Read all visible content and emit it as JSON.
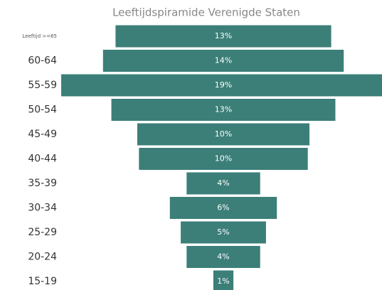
{
  "chart_data": {
    "type": "funnel",
    "title": "Leeftijdspiramide Verenigde Staten",
    "categories": [
      "Leeftijd >=65",
      "60-64",
      "55-59",
      "50-54",
      "45-49",
      "40-44",
      "35-39",
      "30-34",
      "25-29",
      "20-24",
      "15-19"
    ],
    "values": [
      12.9,
      14.4,
      19.4,
      13.4,
      10.3,
      10.1,
      4.4,
      6.4,
      5.1,
      4.4,
      1.2
    ],
    "value_labels": [
      "13%",
      "14%",
      "19%",
      "13%",
      "10%",
      "10%",
      "4%",
      "6%",
      "5%",
      "4%",
      "1%"
    ],
    "color": "#3b7f78"
  }
}
